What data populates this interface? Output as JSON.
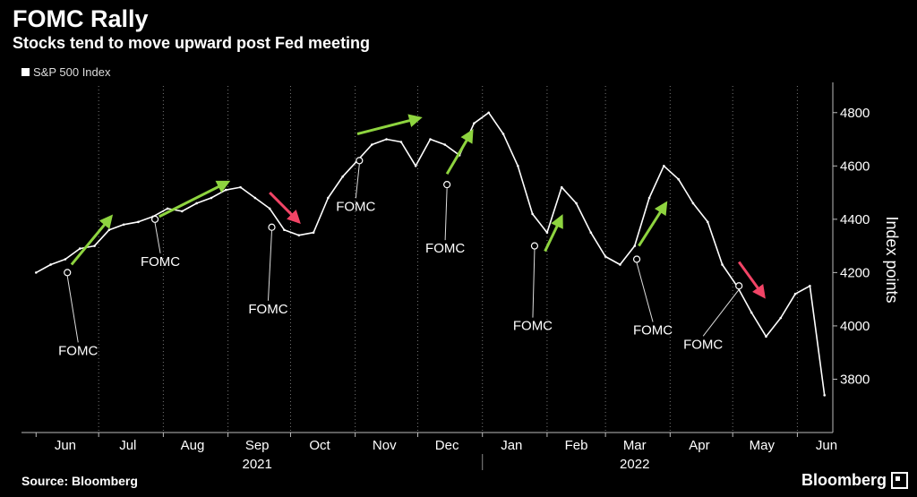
{
  "title": "FOMC Rally",
  "subtitle": "Stocks tend to move upward post Fed meeting",
  "legend_label": "S&P 500 Index",
  "source": "Source: Bloomberg",
  "brand": "Bloomberg",
  "colors": {
    "background": "#000000",
    "series": "#ffffff",
    "up_arrow": "#8ed43f",
    "down_arrow": "#f24466",
    "grid": "#777777"
  },
  "chart_data": {
    "type": "line",
    "title": "FOMC Rally",
    "subtitle": "Stocks tend to move upward post Fed meeting",
    "ylabel": "Index points",
    "xlabel": "",
    "ylim": [
      3600,
      4900
    ],
    "yticks": [
      3800,
      4000,
      4200,
      4400,
      4600,
      4800
    ],
    "month_ticks": [
      "Jun",
      "Jul",
      "Aug",
      "Sep",
      "Oct",
      "Nov",
      "Dec",
      "Jan",
      "Feb",
      "Mar",
      "Apr",
      "May",
      "Jun"
    ],
    "year_labels": [
      "2021",
      "2022"
    ],
    "grid": "vertical",
    "series": [
      {
        "name": "S&P 500 Index",
        "x": [
          "2021-06-01",
          "2021-06-08",
          "2021-06-15",
          "2021-06-22",
          "2021-06-29",
          "2021-07-06",
          "2021-07-13",
          "2021-07-20",
          "2021-07-27",
          "2021-08-03",
          "2021-08-10",
          "2021-08-17",
          "2021-08-24",
          "2021-08-31",
          "2021-09-07",
          "2021-09-14",
          "2021-09-21",
          "2021-09-28",
          "2021-10-05",
          "2021-10-12",
          "2021-10-19",
          "2021-10-26",
          "2021-11-02",
          "2021-11-09",
          "2021-11-16",
          "2021-11-23",
          "2021-11-30",
          "2021-12-07",
          "2021-12-14",
          "2021-12-21",
          "2021-12-28",
          "2022-01-04",
          "2022-01-11",
          "2022-01-18",
          "2022-01-25",
          "2022-02-01",
          "2022-02-08",
          "2022-02-15",
          "2022-02-22",
          "2022-03-01",
          "2022-03-08",
          "2022-03-15",
          "2022-03-22",
          "2022-03-29",
          "2022-04-05",
          "2022-04-12",
          "2022-04-19",
          "2022-04-26",
          "2022-05-03",
          "2022-05-10",
          "2022-05-17",
          "2022-05-24",
          "2022-05-31",
          "2022-06-07",
          "2022-06-14"
        ],
        "values": [
          4200,
          4230,
          4250,
          4290,
          4300,
          4360,
          4380,
          4390,
          4410,
          4440,
          4430,
          4460,
          4480,
          4510,
          4520,
          4480,
          4440,
          4360,
          4340,
          4350,
          4480,
          4560,
          4620,
          4680,
          4700,
          4690,
          4600,
          4700,
          4680,
          4640,
          4760,
          4800,
          4720,
          4600,
          4420,
          4350,
          4520,
          4460,
          4350,
          4260,
          4230,
          4300,
          4480,
          4600,
          4550,
          4460,
          4390,
          4230,
          4150,
          4050,
          3960,
          4030,
          4120,
          4150,
          3740
        ]
      }
    ],
    "fomc_markers": [
      {
        "label": "FOMC",
        "date": "2021-06-16",
        "value": 4200
      },
      {
        "label": "FOMC",
        "date": "2021-07-28",
        "value": 4400
      },
      {
        "label": "FOMC",
        "date": "2021-09-22",
        "value": 4370
      },
      {
        "label": "FOMC",
        "date": "2021-11-03",
        "value": 4620
      },
      {
        "label": "FOMC",
        "date": "2021-12-15",
        "value": 4530
      },
      {
        "label": "FOMC",
        "date": "2022-01-26",
        "value": 4300
      },
      {
        "label": "FOMC",
        "date": "2022-03-16",
        "value": 4250
      },
      {
        "label": "FOMC",
        "date": "2022-05-04",
        "value": 4150
      }
    ],
    "annotations": [
      {
        "type": "up-arrow",
        "from_date": "2021-06-18",
        "from_value": 4230,
        "to_date": "2021-07-07",
        "to_value": 4410
      },
      {
        "type": "up-arrow",
        "from_date": "2021-07-30",
        "from_value": 4410,
        "to_date": "2021-09-01",
        "to_value": 4540
      },
      {
        "type": "down-arrow",
        "from_date": "2021-09-21",
        "from_value": 4500,
        "to_date": "2021-10-05",
        "to_value": 4390
      },
      {
        "type": "up-arrow",
        "from_date": "2021-11-02",
        "from_value": 4720,
        "to_date": "2021-12-02",
        "to_value": 4780
      },
      {
        "type": "up-arrow",
        "from_date": "2021-12-15",
        "from_value": 4570,
        "to_date": "2021-12-27",
        "to_value": 4730
      },
      {
        "type": "up-arrow",
        "from_date": "2022-01-31",
        "from_value": 4280,
        "to_date": "2022-02-08",
        "to_value": 4410
      },
      {
        "type": "up-arrow",
        "from_date": "2022-03-17",
        "from_value": 4300,
        "to_date": "2022-03-30",
        "to_value": 4460
      },
      {
        "type": "down-arrow",
        "from_date": "2022-05-04",
        "from_value": 4240,
        "to_date": "2022-05-16",
        "to_value": 4110
      }
    ]
  }
}
